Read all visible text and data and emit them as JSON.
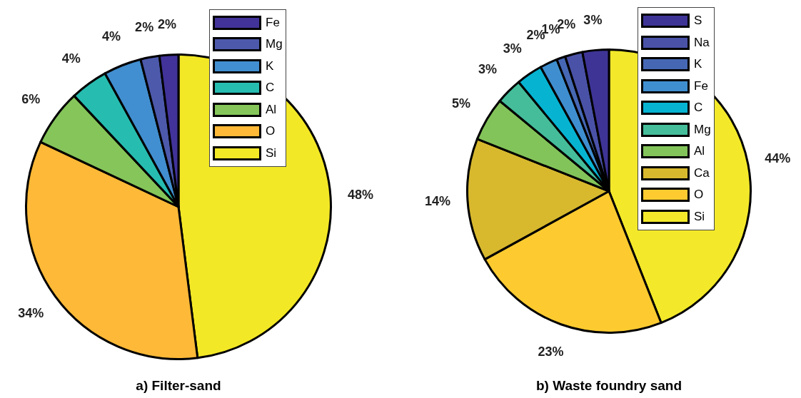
{
  "chart_data": [
    {
      "type": "pie",
      "title": "a) Filter-sand",
      "categories": [
        "Fe",
        "Mg",
        "K",
        "C",
        "Al",
        "O",
        "Si"
      ],
      "values": [
        2,
        2,
        4,
        4,
        6,
        34,
        48
      ],
      "value_labels": [
        "2%",
        "2%",
        "4%",
        "4%",
        "6%",
        "34%",
        "48%"
      ],
      "colors": [
        "#41339a",
        "#4d59ab",
        "#418fd0",
        "#27bcb0",
        "#85c55a",
        "#fdb937",
        "#f3e826"
      ],
      "legend": "top right"
    },
    {
      "type": "pie",
      "title": "b) Waste foundry sand",
      "categories": [
        "S",
        "Na",
        "K",
        "Fe",
        "C",
        "Mg",
        "Al",
        "Ca",
        "O",
        "Si"
      ],
      "values": [
        3,
        2,
        1,
        2,
        3,
        3,
        5,
        14,
        23,
        44
      ],
      "value_labels": [
        "3%",
        "2%",
        "1%",
        "2%",
        "3%",
        "3%",
        "5%",
        "14%",
        "23%",
        "44%"
      ],
      "colors": [
        "#3e3496",
        "#4a52a8",
        "#4668b4",
        "#3f8fd0",
        "#06b4d2",
        "#45bd9a",
        "#83c45a",
        "#d8b92e",
        "#fdcb30",
        "#f3e92a"
      ],
      "legend": "top right"
    }
  ]
}
